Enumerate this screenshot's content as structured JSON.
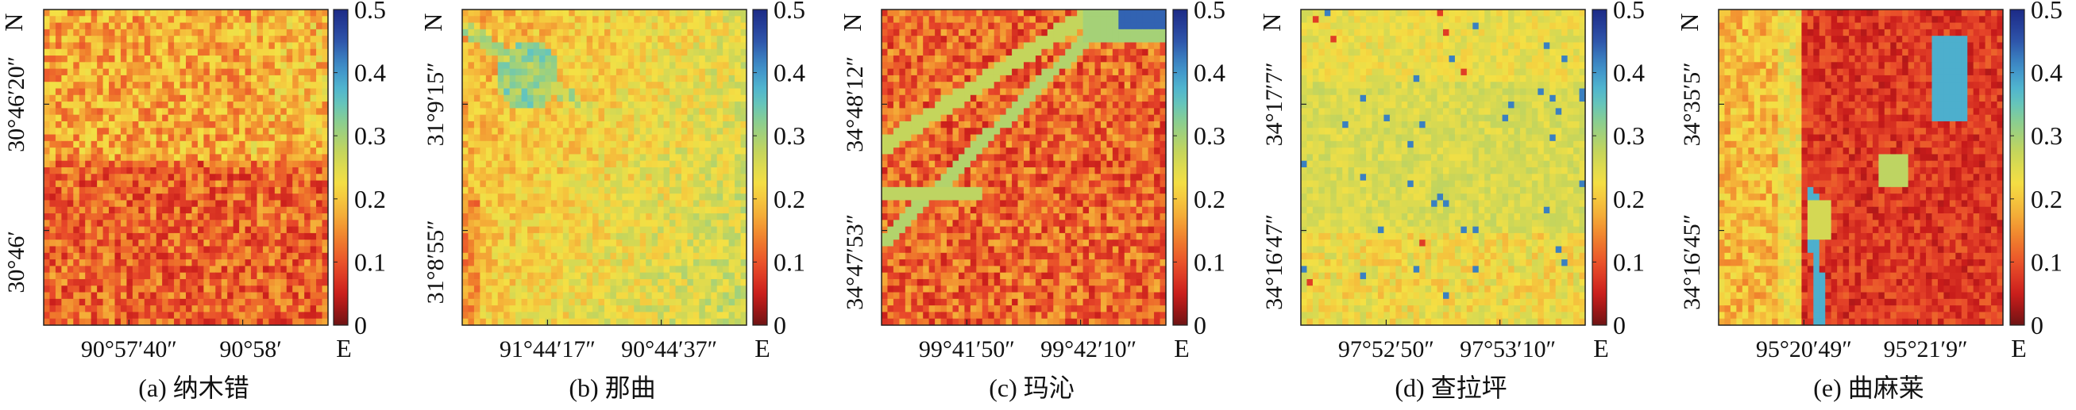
{
  "colorbar": {
    "ticks": [
      "0.5",
      "0.4",
      "0.3",
      "0.2",
      "0.1",
      "0"
    ],
    "values": [
      0.5,
      0.4,
      0.3,
      0.2,
      0.1,
      0.0
    ],
    "range": [
      0,
      0.5
    ],
    "colormap": [
      "#ffffff",
      "#6e1414",
      "#c71a1a",
      "#e8482a",
      "#f07e2c",
      "#f5b63a",
      "#f4e044",
      "#c7d55a",
      "#8fcf8a",
      "#55c1cf",
      "#3f8fca",
      "#2c4fa6",
      "#1c2a86"
    ]
  },
  "compass": {
    "north": "N",
    "east": "E"
  },
  "panels": [
    {
      "caption": "(a) 纳木错",
      "xticks": [
        "90°57′40″",
        "90°58′"
      ],
      "yticks": [
        "30°46′20″",
        "30°46′"
      ],
      "profile": "a"
    },
    {
      "caption": "(b) 那曲",
      "xticks": [
        "91°44′17″",
        "90°44′37″"
      ],
      "yticks": [
        "31°9′15″",
        "31°8′55″"
      ],
      "profile": "b"
    },
    {
      "caption": "(c) 玛沁",
      "xticks": [
        "99°41′50″",
        "99°42′10″"
      ],
      "yticks": [
        "34°48′12″",
        "34°47′53″"
      ],
      "profile": "c"
    },
    {
      "caption": "(d) 查拉坪",
      "xticks": [
        "97°52′50″",
        "97°53′10″"
      ],
      "yticks": [
        "34°17′7″",
        "34°16′47″"
      ],
      "profile": "d"
    },
    {
      "caption": "(e) 曲麻莱",
      "xticks": [
        "95°20′49″",
        "95°21′9″"
      ],
      "yticks": [
        "34°35′5″",
        "34°16′45″"
      ],
      "profile": "e"
    }
  ]
}
